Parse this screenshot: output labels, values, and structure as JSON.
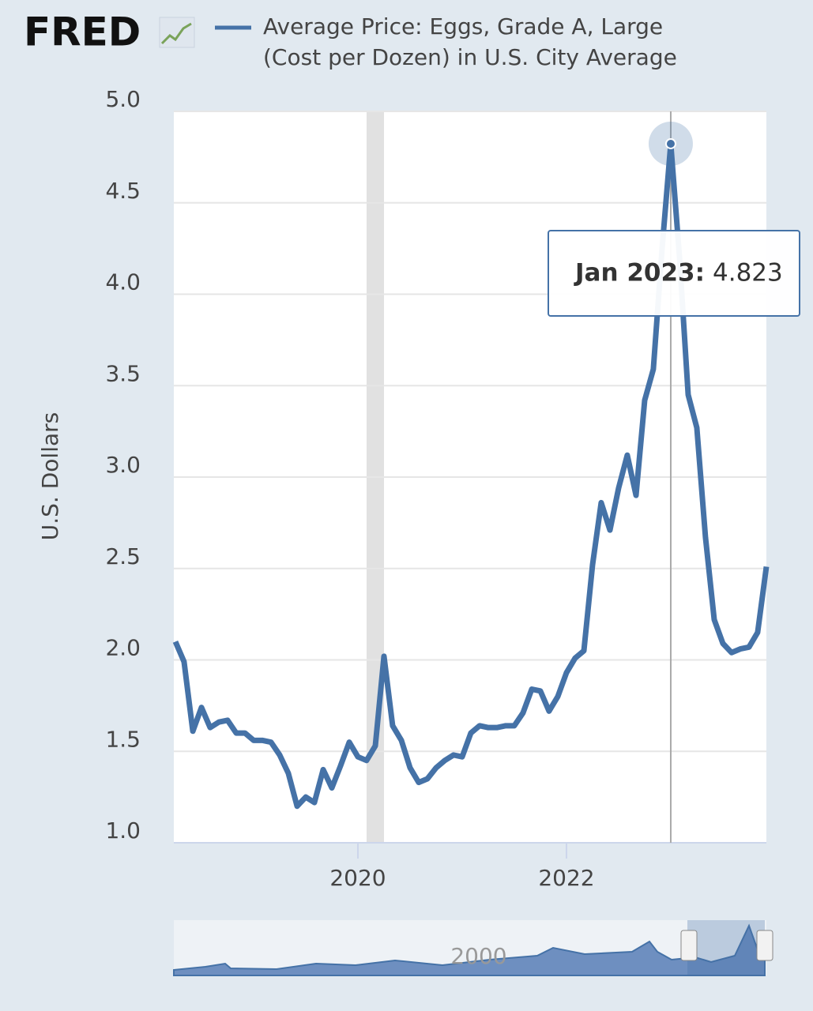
{
  "logo": "FRED",
  "chart_data": {
    "type": "line",
    "y_axis_label": "U.S. Dollars",
    "x": [
      2018.25,
      2018.333,
      2018.417,
      2018.5,
      2018.583,
      2018.667,
      2018.75,
      2018.833,
      2018.917,
      2019,
      2019.083,
      2019.167,
      2019.25,
      2019.333,
      2019.417,
      2019.5,
      2019.583,
      2019.667,
      2019.75,
      2019.833,
      2019.917,
      2020,
      2020.083,
      2020.167,
      2020.25,
      2020.333,
      2020.417,
      2020.5,
      2020.583,
      2020.667,
      2020.75,
      2020.833,
      2020.917,
      2021,
      2021.083,
      2021.167,
      2021.25,
      2021.333,
      2021.417,
      2021.5,
      2021.583,
      2021.667,
      2021.75,
      2021.833,
      2021.917,
      2022,
      2022.083,
      2022.167,
      2022.25,
      2022.333,
      2022.417,
      2022.5,
      2022.583,
      2022.667,
      2022.75,
      2022.833,
      2022.917,
      2023,
      2023.083,
      2023.167,
      2023.25,
      2023.333,
      2023.417,
      2023.5,
      2023.583,
      2023.667,
      2023.75,
      2023.833,
      2023.917
    ],
    "series": [
      {
        "name": "Average Price: Eggs, Grade A, Large (Cost per Dozen) in U.S. City Average",
        "color": "#4572a7",
        "values": [
          2.1,
          1.99,
          1.61,
          1.74,
          1.63,
          1.66,
          1.67,
          1.6,
          1.6,
          1.56,
          1.56,
          1.55,
          1.48,
          1.38,
          1.2,
          1.25,
          1.22,
          1.4,
          1.3,
          1.42,
          1.55,
          1.47,
          1.45,
          1.53,
          2.02,
          1.64,
          1.56,
          1.41,
          1.33,
          1.35,
          1.41,
          1.45,
          1.48,
          1.47,
          1.6,
          1.64,
          1.63,
          1.63,
          1.64,
          1.64,
          1.71,
          1.84,
          1.83,
          1.72,
          1.8,
          1.93,
          2.01,
          2.05,
          2.52,
          2.86,
          2.71,
          2.94,
          3.12,
          2.9,
          3.42,
          3.59,
          4.25,
          4.823,
          4.21,
          3.45,
          3.27,
          2.67,
          2.22,
          2.09,
          2.04,
          2.06,
          2.07,
          2.15,
          2.51
        ]
      }
    ],
    "xlim": [
      2018.25,
      2023.917
    ],
    "xticks": [
      2020,
      2022
    ],
    "ylim": [
      1.0,
      5.0
    ],
    "yticks": [
      {
        "value": 1,
        "label": "1.0"
      },
      1.5,
      {
        "value": 2,
        "label": "2.0"
      },
      2.5,
      {
        "value": 3,
        "label": "3.0"
      },
      3.5,
      {
        "value": 4,
        "label": "4.0"
      },
      4.5,
      {
        "value": 5,
        "label": "5.0"
      }
    ],
    "grid": true,
    "recession": [
      2020.083,
      2020.25
    ],
    "tooltip": {
      "label": "Jan 2023:",
      "x": 2023
    },
    "navigator_label": "2000"
  }
}
